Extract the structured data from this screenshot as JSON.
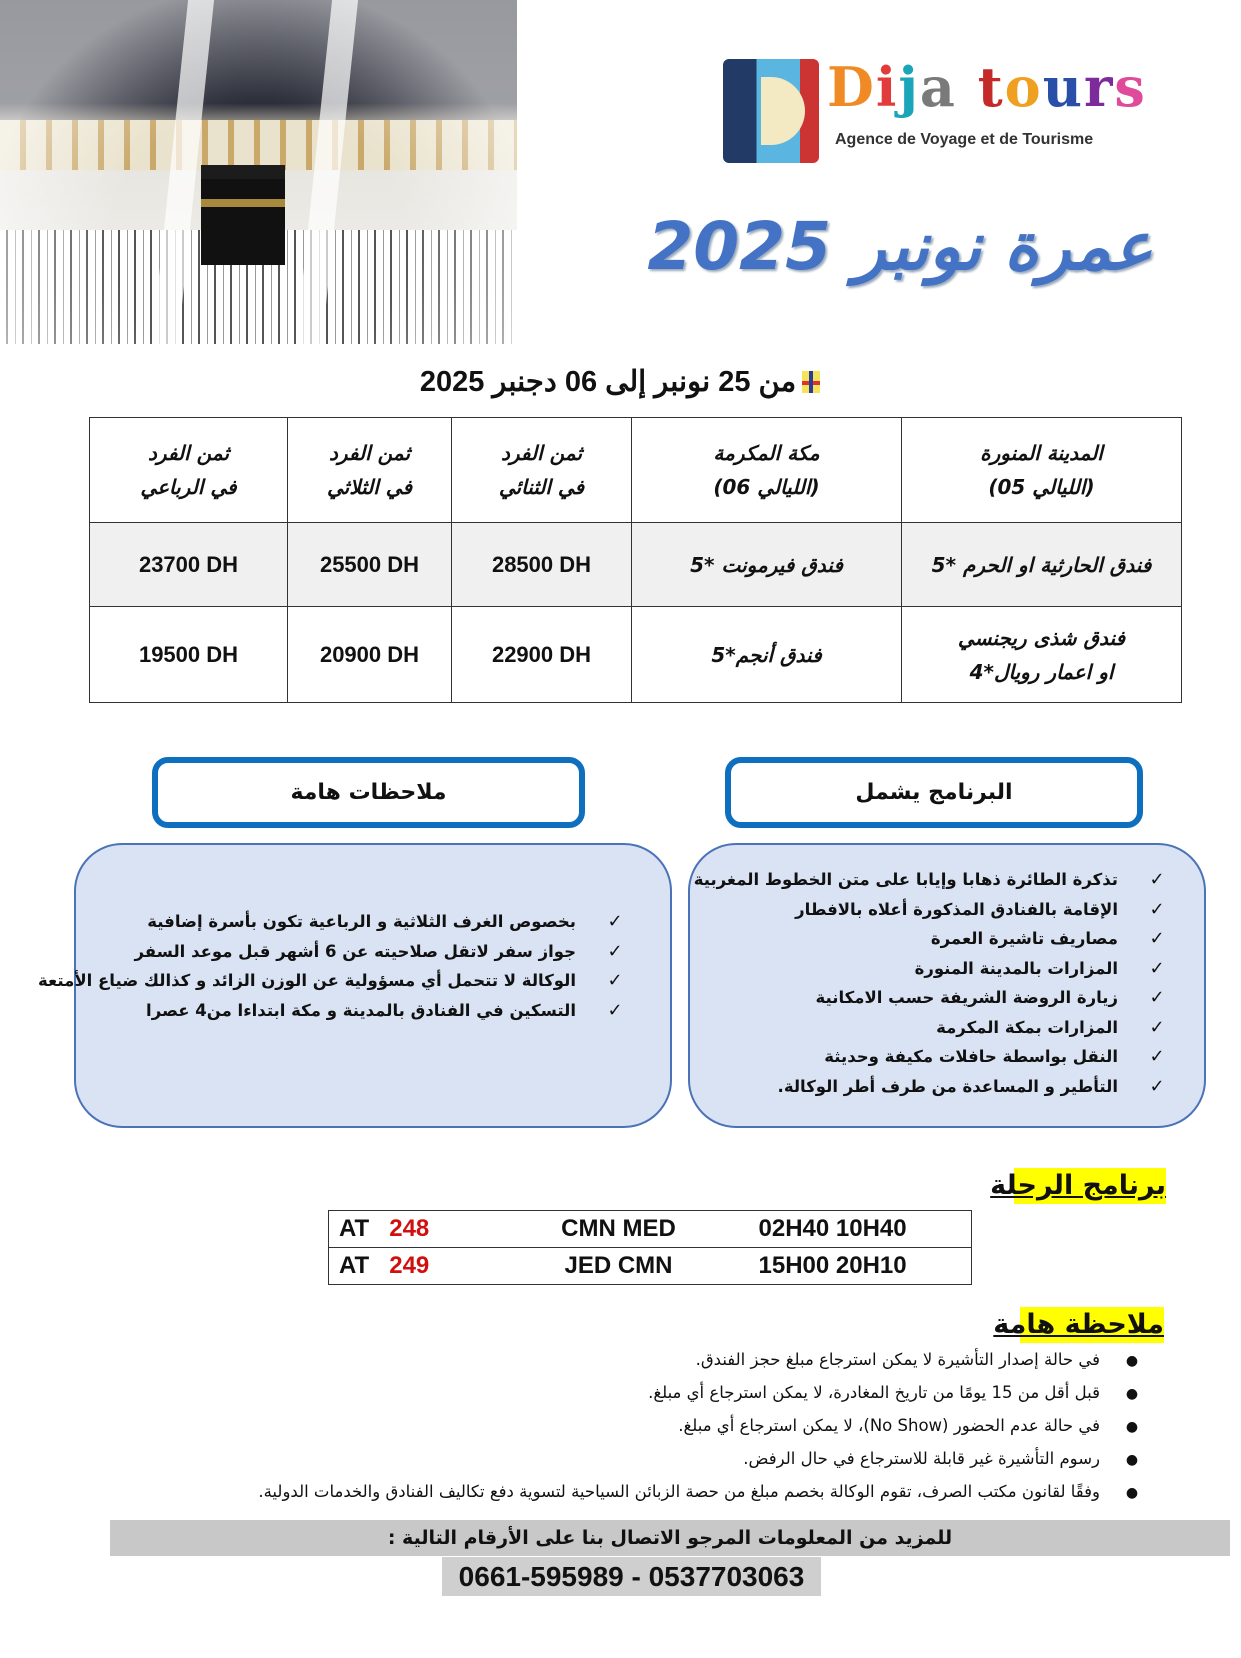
{
  "brand": {
    "name_letters": [
      {
        "ch": "D",
        "color": "#f08a24"
      },
      {
        "ch": "i",
        "color": "#e23b3b"
      },
      {
        "ch": "j",
        "color": "#1aa5b8"
      },
      {
        "ch": "a",
        "color": "#7a7a7a"
      },
      {
        "ch": " ",
        "color": "#fff"
      },
      {
        "ch": "t",
        "color": "#c42a2a"
      },
      {
        "ch": "o",
        "color": "#f0a020"
      },
      {
        "ch": "u",
        "color": "#2a4fa8"
      },
      {
        "ch": "r",
        "color": "#7d2a9a"
      },
      {
        "ch": "s",
        "color": "#e04a9a"
      }
    ],
    "name": "Dija tours",
    "tagline": "Agence de Voyage et de Tourisme"
  },
  "title": "عمرة نونبر 2025",
  "dates": "من 25 نونبر  إلى 06 دجنبر 2025",
  "prices_table": {
    "headers": [
      [
        "المدينة المنورة",
        "(الليالي 05)"
      ],
      [
        "مكة المكرمة",
        "(الليالي 06)"
      ],
      [
        "ثمن الفرد",
        "في الثنائي"
      ],
      [
        "ثمن الفرد",
        "في الثلاثي"
      ],
      [
        "ثمن الفرد",
        "في الرباعي"
      ]
    ],
    "rows": [
      {
        "madinah": [
          "فندق الحارثية او الحرم *5"
        ],
        "makkah": "فندق فيرمونت *5",
        "double": "28500 DH",
        "triple": "25500 DH",
        "quad": "23700 DH"
      },
      {
        "madinah": [
          "فندق شذى ريجنسي",
          "او اعمار رويال*4"
        ],
        "makkah": "فندق أنجم*5",
        "double": "22900 DH",
        "triple": "20900 DH",
        "quad": "19500 DH"
      }
    ]
  },
  "includes": {
    "title": "البرنامج يشمل",
    "items": [
      "تذكرة الطائرة ذهابا وإيابا  على متن الخطوط المغربية",
      "الإقامة بالفنادق المذكورة أعلاه  بالافطار",
      "مصاريف تاشيرة  العمرة",
      "المزارات بالمدينة المنورة",
      "زيارة الروضة الشريفة حسب الامكانية",
      "المزارات بمكة المكرمة",
      "النقل بواسطة حافلات مكيفة وحديثة",
      "التأطير و المساعدة  من طرف  أطر الوكالة."
    ]
  },
  "notes": {
    "title": "ملاحظات هامة",
    "items": [
      "بخصوص الغرف  الثلاثية و الرباعية تكون بأسرة إضافية",
      "جواز سفر لاتقل صلاحيته عن 6 أشهر قبل موعد السفر",
      "الوكالة لا تتحمل أي مسؤولية عن الوزن الزائد و كذالك ضياع الأمتعة",
      "التسكين في الفنادق بالمدينة و مكة ابتداءا من4 عصرا"
    ]
  },
  "flight_program": {
    "title": "برنامج الرحلة",
    "flights": [
      {
        "airline": "AT",
        "number": "248",
        "route": "CMN MED",
        "times": "02H40  10H40"
      },
      {
        "airline": "AT",
        "number": "249",
        "route": "JED CMN",
        "times": "15H00  20H10"
      }
    ]
  },
  "important_note": {
    "title": "ملاحظة هامة",
    "items": [
      "في حالة إصدار التأشيرة لا يمكن استرجاع مبلغ حجز الفندق.",
      "قبل أقل من 15 يومًا من تاريخ المغادرة، لا يمكن استرجاع أي مبلغ.",
      "في حالة عدم الحضور (No Show)، لا يمكن استرجاع أي مبلغ.",
      "رسوم التأشيرة غير قابلة للاسترجاع في حال الرفض.",
      "وفقًا لقانون مكتب الصرف، تقوم الوكالة بخصم مبلغ من حصة الزبائن السياحية لتسوية دفع تكاليف الفنادق والخدمات الدولية."
    ]
  },
  "contact": {
    "text": "للمزيد من المعلومات المرجو الاتصال بنا على الأرقام التالية :",
    "phones": "0661-595989 - 0537703063"
  },
  "colors": {
    "title": "#4472c4",
    "pill_border": "#0f6fbf",
    "panel_bg": "#dae3f3",
    "highlight": "#ffff00",
    "flight_number": "#d01010"
  }
}
